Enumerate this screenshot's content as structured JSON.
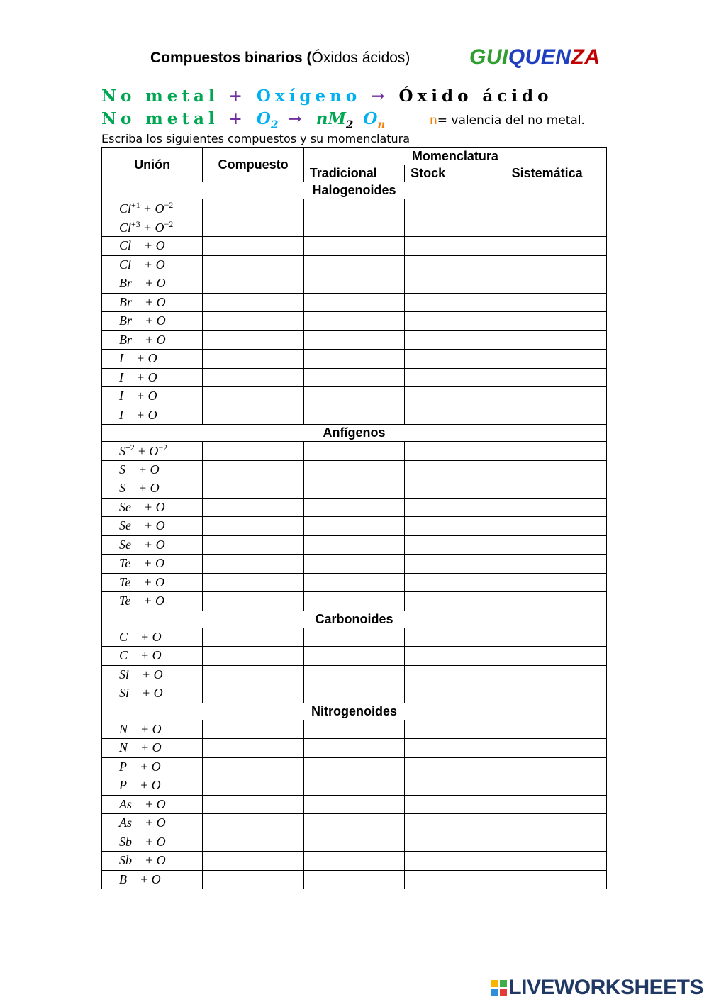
{
  "header": {
    "title_bold": "Compuestos binarios (",
    "title_rest": "Óxidos ácidos)",
    "brand": [
      "GUI",
      "QUEN",
      "ZA"
    ]
  },
  "formula1": {
    "left": "No metal",
    "plus": "+",
    "right": "Oxígeno",
    "arrow": "→",
    "result": "Óxido ácido"
  },
  "formula2": {
    "left": "No metal",
    "plus": "+",
    "oxygen": "O",
    "oxygen_sub": "2",
    "arrow": "→",
    "prefix": "nM",
    "prefix_sub": "2",
    "oxide": "O",
    "oxide_sub": "n"
  },
  "note": {
    "n": "n",
    "text": "= valencia del no metal."
  },
  "instruction": "Escriba los siguientes compuestos y su momenclatura",
  "table": {
    "headers": [
      "Unión",
      "Compuesto"
    ],
    "group_header": "Momenclatura",
    "subheaders": [
      "Tradicional",
      "Stock",
      "Sistemática"
    ],
    "sections": [
      {
        "title": "Halogenoides",
        "rows": [
          {
            "el": "Cl",
            "el_sup": "+1",
            "o": "+ O",
            "o_sup": "−2"
          },
          {
            "el": "Cl",
            "el_sup": "+3",
            "o": "+ O",
            "o_sup": "−2"
          },
          {
            "el": "Cl",
            "o": "+ O"
          },
          {
            "el": "Cl",
            "o": "+ O"
          },
          {
            "el": "Br",
            "o": "+ O"
          },
          {
            "el": "Br",
            "o": "+ O"
          },
          {
            "el": "Br",
            "o": "+ O"
          },
          {
            "el": "Br",
            "o": "+ O"
          },
          {
            "el": "I",
            "o": "+ O"
          },
          {
            "el": "I",
            "o": "+ O"
          },
          {
            "el": "I",
            "o": "+ O"
          },
          {
            "el": "I",
            "o": "+ O"
          }
        ]
      },
      {
        "title": "Anfígenos",
        "rows": [
          {
            "el": "S",
            "el_sup": "+2",
            "o": "+ O",
            "o_sup": "−2"
          },
          {
            "el": "S",
            "o": "+ O"
          },
          {
            "el": "S",
            "o": "+ O"
          },
          {
            "el": "Se",
            "o": "+ O"
          },
          {
            "el": "Se",
            "o": "+ O"
          },
          {
            "el": "Se",
            "o": "+ O"
          },
          {
            "el": "Te",
            "o": "+ O"
          },
          {
            "el": "Te",
            "o": "+ O"
          },
          {
            "el": "Te",
            "o": "+ O"
          }
        ]
      },
      {
        "title": "Carbonoides",
        "rows": [
          {
            "el": "C",
            "o": "+ O"
          },
          {
            "el": "C",
            "o": "+ O"
          },
          {
            "el": "Si",
            "o": "+ O"
          },
          {
            "el": "Si",
            "o": "+ O"
          }
        ]
      },
      {
        "title": "Nitrogenoides",
        "rows": [
          {
            "el": "N",
            "o": "+ O"
          },
          {
            "el": "N",
            "o": "+ O"
          },
          {
            "el": "P",
            "o": "+ O"
          },
          {
            "el": "P",
            "o": "+ O"
          },
          {
            "el": "As",
            "o": "+ O"
          },
          {
            "el": "As",
            "o": "+ O"
          },
          {
            "el": "Sb",
            "o": "+ O"
          },
          {
            "el": "Sb",
            "o": "+ O"
          },
          {
            "el": "B",
            "o": "+ O"
          }
        ]
      }
    ]
  },
  "footer": "LIVEWORKSHEETS"
}
